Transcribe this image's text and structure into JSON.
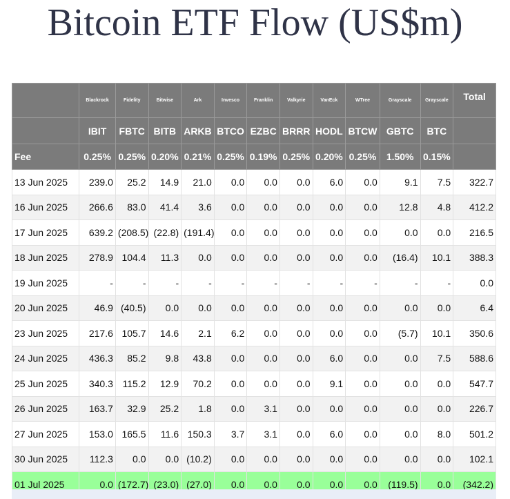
{
  "title": "Bitcoin ETF Flow (US$m)",
  "colors": {
    "header_bg": "#7b7b7b",
    "negative": "#d81b1b",
    "highlight_row": "#99ff99",
    "alt_row": "#f2f2f2"
  },
  "chart_data": {
    "type": "table",
    "issuers": [
      "Blackrock",
      "Fidelity",
      "Bitwise",
      "Ark",
      "Invesco",
      "Franklin",
      "Valkyrie",
      "VanEck",
      "WTree",
      "Grayscale",
      "Grayscale"
    ],
    "tickers": [
      "IBIT",
      "FBTC",
      "BITB",
      "ARKB",
      "BTCO",
      "EZBC",
      "BRRR",
      "HODL",
      "BTCW",
      "GBTC",
      "BTC"
    ],
    "fee_label": "Fee",
    "fees": [
      "0.25%",
      "0.25%",
      "0.20%",
      "0.21%",
      "0.25%",
      "0.19%",
      "0.25%",
      "0.20%",
      "0.25%",
      "1.50%",
      "0.15%"
    ],
    "total_label": "Total",
    "rows": [
      {
        "date": "13 Jun 2025",
        "values": [
          "239.0",
          "25.2",
          "14.9",
          "21.0",
          "0.0",
          "0.0",
          "0.0",
          "6.0",
          "0.0",
          "9.1",
          "7.5"
        ],
        "total": "322.7"
      },
      {
        "date": "16 Jun 2025",
        "values": [
          "266.6",
          "83.0",
          "41.4",
          "3.6",
          "0.0",
          "0.0",
          "0.0",
          "0.0",
          "0.0",
          "12.8",
          "4.8"
        ],
        "total": "412.2"
      },
      {
        "date": "17 Jun 2025",
        "values": [
          "639.2",
          "(208.5)",
          "(22.8)",
          "(191.4)",
          "0.0",
          "0.0",
          "0.0",
          "0.0",
          "0.0",
          "0.0",
          "0.0"
        ],
        "total": "216.5"
      },
      {
        "date": "18 Jun 2025",
        "values": [
          "278.9",
          "104.4",
          "11.3",
          "0.0",
          "0.0",
          "0.0",
          "0.0",
          "0.0",
          "0.0",
          "(16.4)",
          "10.1"
        ],
        "total": "388.3"
      },
      {
        "date": "19 Jun 2025",
        "values": [
          "-",
          "-",
          "-",
          "-",
          "-",
          "-",
          "-",
          "-",
          "-",
          "-",
          "-"
        ],
        "total": "0.0"
      },
      {
        "date": "20 Jun 2025",
        "values": [
          "46.9",
          "(40.5)",
          "0.0",
          "0.0",
          "0.0",
          "0.0",
          "0.0",
          "0.0",
          "0.0",
          "0.0",
          "0.0"
        ],
        "total": "6.4"
      },
      {
        "date": "23 Jun 2025",
        "values": [
          "217.6",
          "105.7",
          "14.6",
          "2.1",
          "6.2",
          "0.0",
          "0.0",
          "0.0",
          "0.0",
          "(5.7)",
          "10.1"
        ],
        "total": "350.6"
      },
      {
        "date": "24 Jun 2025",
        "values": [
          "436.3",
          "85.2",
          "9.8",
          "43.8",
          "0.0",
          "0.0",
          "0.0",
          "6.0",
          "0.0",
          "0.0",
          "7.5"
        ],
        "total": "588.6"
      },
      {
        "date": "25 Jun 2025",
        "values": [
          "340.3",
          "115.2",
          "12.9",
          "70.2",
          "0.0",
          "0.0",
          "0.0",
          "9.1",
          "0.0",
          "0.0",
          "0.0"
        ],
        "total": "547.7"
      },
      {
        "date": "26 Jun 2025",
        "values": [
          "163.7",
          "32.9",
          "25.2",
          "1.8",
          "0.0",
          "3.1",
          "0.0",
          "0.0",
          "0.0",
          "0.0",
          "0.0"
        ],
        "total": "226.7"
      },
      {
        "date": "27 Jun 2025",
        "values": [
          "153.0",
          "165.5",
          "11.6",
          "150.3",
          "3.7",
          "3.1",
          "0.0",
          "6.0",
          "0.0",
          "0.0",
          "8.0"
        ],
        "total": "501.2"
      },
      {
        "date": "30 Jun 2025",
        "values": [
          "112.3",
          "0.0",
          "0.0",
          "(10.2)",
          "0.0",
          "0.0",
          "0.0",
          "0.0",
          "0.0",
          "0.0",
          "0.0"
        ],
        "total": "102.1"
      },
      {
        "date": "01 Jul 2025",
        "values": [
          "0.0",
          "(172.7)",
          "(23.0)",
          "(27.0)",
          "0.0",
          "0.0",
          "0.0",
          "0.0",
          "0.0",
          "(119.5)",
          "0.0"
        ],
        "total": "(342.2)",
        "highlight": true
      }
    ]
  }
}
